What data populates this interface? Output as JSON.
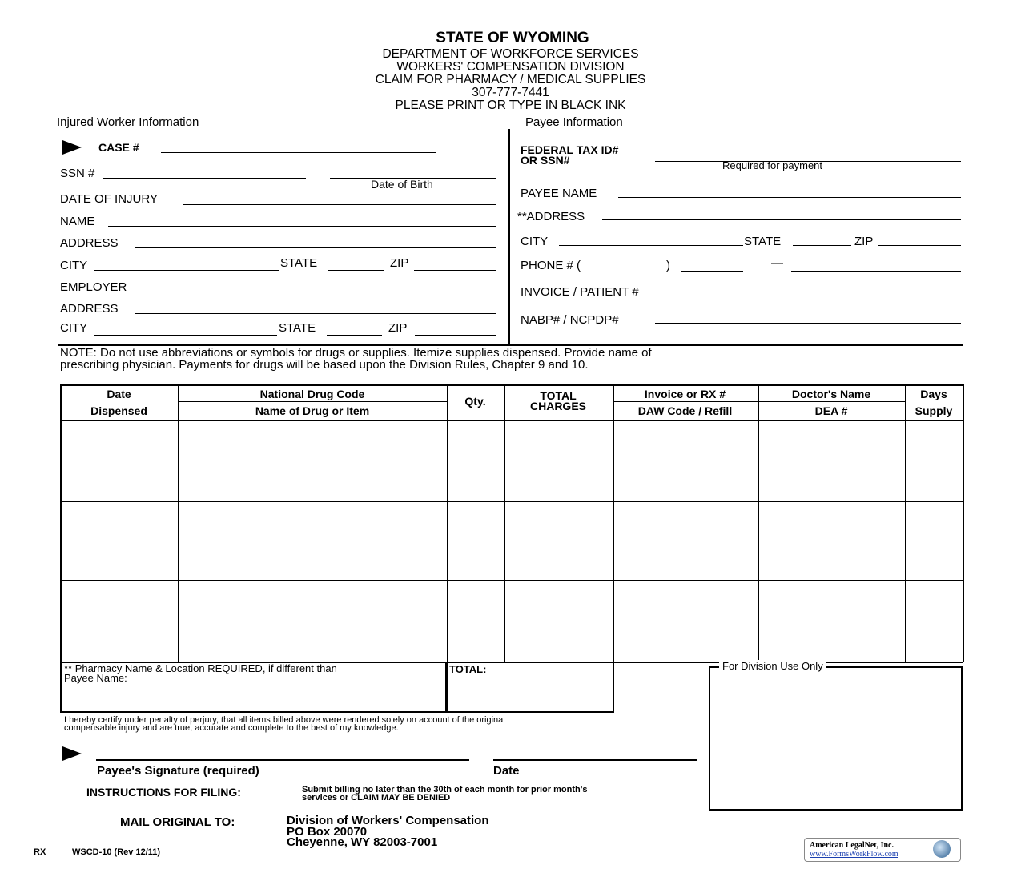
{
  "header": {
    "title": "STATE OF WYOMING",
    "lines": [
      "DEPARTMENT OF WORKFORCE SERVICES",
      "WORKERS' COMPENSATION DIVISION",
      "CLAIM FOR PHARMACY / MEDICAL SUPPLIES",
      "307-777-7441",
      "PLEASE PRINT OR TYPE IN BLACK INK"
    ]
  },
  "injured_worker": {
    "heading": "Injured Worker Information",
    "case": "CASE #",
    "ssn": "SSN #",
    "dob": "Date of Birth",
    "date_of_injury": "DATE OF INJURY",
    "name": "NAME",
    "address": "ADDRESS",
    "city": "CITY",
    "state": "STATE",
    "zip": "ZIP",
    "employer": "EMPLOYER",
    "employer_address": "ADDRESS",
    "employer_city": "CITY",
    "employer_state": "STATE",
    "employer_zip": "ZIP"
  },
  "payee": {
    "heading": "Payee Information",
    "tax_id_1": "FEDERAL TAX ID#",
    "tax_id_2": "OR SSN#",
    "required": "Required for payment",
    "name": "PAYEE NAME",
    "address": "**ADDRESS",
    "city": "CITY",
    "state": "STATE",
    "zip": "ZIP",
    "phone": "PHONE # (",
    "phone_paren": ")",
    "phone_dash": "—",
    "invoice": "INVOICE /  PATIENT #",
    "nabp": "NABP# / NCPDP#"
  },
  "note": {
    "line1": "NOTE:  Do not use abbreviations or symbols for drugs or supplies.  Itemize supplies dispensed.  Provide name of",
    "line2": "prescribing physician. Payments for drugs will be based upon the Division Rules, Chapter 9 and 10."
  },
  "table": {
    "headers": [
      {
        "top": "Date",
        "bottom": "Dispensed"
      },
      {
        "top": "National Drug Code",
        "bottom": "Name of Drug or Item"
      },
      {
        "top": "Qty.",
        "bottom": ""
      },
      {
        "top": "TOTAL",
        "bottom": "CHARGES"
      },
      {
        "top": "Invoice or RX #",
        "bottom": "DAW Code / Refill"
      },
      {
        "top": "Doctor's Name",
        "bottom": "DEA  #"
      },
      {
        "top": "Days",
        "bottom": "Supply"
      }
    ],
    "row_count": 6
  },
  "pharmacy": {
    "line1": "** Pharmacy Name & Location REQUIRED, if different than",
    "line2": " Payee Name:"
  },
  "total_label": "TOTAL:",
  "division_use": "For Division Use Only",
  "certify": {
    "line1": "I hereby certify under penalty of perjury, that all items billed above were rendered solely on account of the original",
    "line2": "compensable injury and are true, accurate and complete to the best of my knowledge."
  },
  "signature_label": "Payee's Signature (required)",
  "date_label": "Date",
  "instructions": {
    "label": "INSTRUCTIONS FOR FILING:",
    "line1": "Submit billing no later than the 30th of each month for prior month's",
    "line2": "services or CLAIM MAY BE DENIED"
  },
  "mail": {
    "label": "MAIL ORIGINAL TO:",
    "line1": "Division of Workers' Compensation",
    "line2": "PO Box 20070",
    "line3": "Cheyenne, WY  82003-7001"
  },
  "footer": {
    "code": "RX",
    "form": "WSCD-10 (Rev 12/11)"
  },
  "logo": {
    "company": "American LegalNet, Inc.",
    "url": "www.FormsWorkFlow.com"
  }
}
